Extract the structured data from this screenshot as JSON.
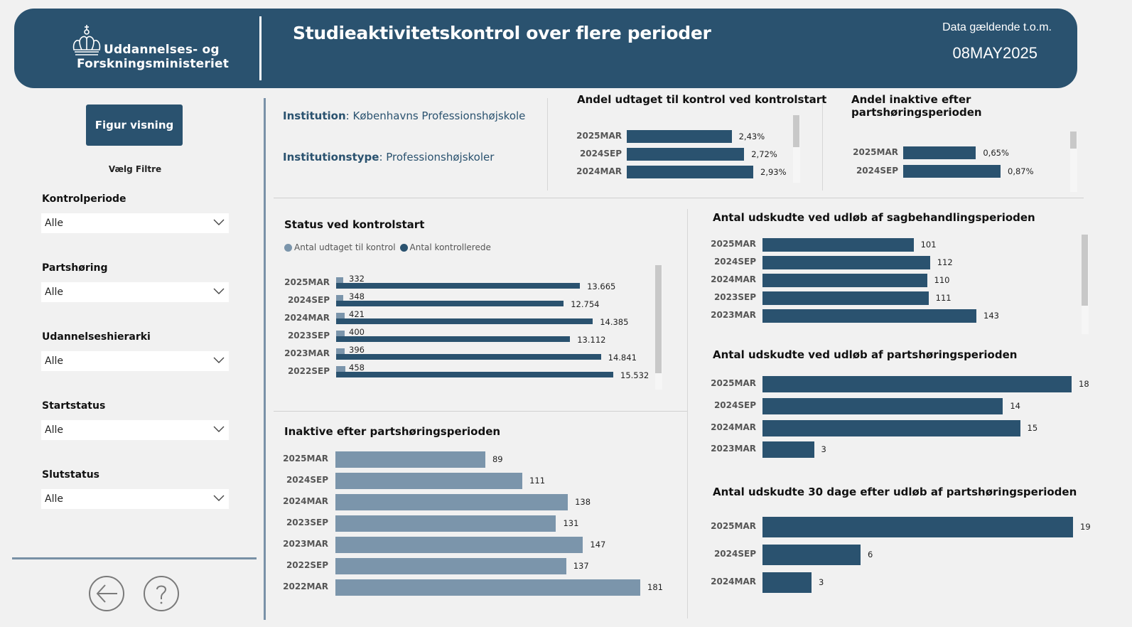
{
  "header": {
    "logo_line1": "Uddannelses- og",
    "logo_line2": "Forskningsministeriet",
    "title": "Studieaktivitetskontrol over flere perioder",
    "data_label": "Data gældende t.o.m.",
    "data_date": "08MAY2025"
  },
  "sidebar": {
    "figur_button": "Figur visning",
    "filters_heading": "Vælg Filtre",
    "filters": [
      {
        "label": "Kontrolperiode",
        "value": "Alle"
      },
      {
        "label": "Partshøring",
        "value": "Alle"
      },
      {
        "label": "Udannelseshierarki",
        "value": "Alle"
      },
      {
        "label": "Startstatus",
        "value": "Alle"
      },
      {
        "label": "Slutstatus",
        "value": "Alle"
      }
    ],
    "back_icon": "arrow-left-circle-icon",
    "help_icon": "question-circle-icon"
  },
  "info": {
    "institution_label": "Institution",
    "institution_value": ": Københavns Professionshøjskole",
    "type_label": "Institutionstype",
    "type_value": ": Professionshøjskoler"
  },
  "colors": {
    "primary": "#2a526f",
    "secondary": "#7b95ab",
    "background": "#f1f1f1"
  },
  "chart_data": [
    {
      "id": "andel-udtaget",
      "type": "bar",
      "title": "Andel udtaget til kontrol ved kontrolstart",
      "categories": [
        "2025MAR",
        "2024SEP",
        "2024MAR"
      ],
      "values": [
        2.43,
        2.72,
        2.93
      ],
      "labels": [
        "2,43%",
        "2,72%",
        "2,93%"
      ],
      "unit": "%"
    },
    {
      "id": "andel-inaktive",
      "type": "bar",
      "title": "Andel inaktive efter partshøringsperioden",
      "categories": [
        "2025MAR",
        "2024SEP"
      ],
      "values": [
        0.65,
        0.87
      ],
      "labels": [
        "0,65%",
        "0,87%"
      ],
      "unit": "%"
    },
    {
      "id": "status-kontrolstart",
      "type": "bar",
      "title": "Status ved kontrolstart",
      "legend": [
        "Antal udtaget til kontrol",
        "Antal kontrollerede"
      ],
      "legend_position": "top-left",
      "categories": [
        "2025MAR",
        "2024SEP",
        "2024MAR",
        "2023SEP",
        "2023MAR",
        "2022SEP"
      ],
      "series": [
        {
          "name": "Antal udtaget til kontrol",
          "values": [
            332,
            348,
            421,
            400,
            396,
            458
          ],
          "labels": [
            "332",
            "348",
            "421",
            "400",
            "396",
            "458"
          ]
        },
        {
          "name": "Antal kontrollerede",
          "values": [
            13665,
            12754,
            14385,
            13112,
            14841,
            15532
          ],
          "labels": [
            "13.665",
            "12.754",
            "14.385",
            "13.112",
            "14.841",
            "15.532"
          ]
        }
      ]
    },
    {
      "id": "inaktive-partshoring",
      "type": "bar",
      "title": "Inaktive efter partshøringsperioden",
      "categories": [
        "2025MAR",
        "2024SEP",
        "2024MAR",
        "2023SEP",
        "2023MAR",
        "2022SEP",
        "2022MAR"
      ],
      "values": [
        89,
        111,
        138,
        131,
        147,
        137,
        181
      ],
      "labels": [
        "89",
        "111",
        "138",
        "131",
        "147",
        "137",
        "181"
      ]
    },
    {
      "id": "udskudte-sagbehandling",
      "type": "bar",
      "title": "Antal udskudte ved udløb af sagbehandlingsperioden",
      "categories": [
        "2025MAR",
        "2024SEP",
        "2024MAR",
        "2023SEP",
        "2023MAR"
      ],
      "values": [
        101,
        112,
        110,
        111,
        143
      ],
      "labels": [
        "101",
        "112",
        "110",
        "111",
        "143"
      ]
    },
    {
      "id": "udskudte-partshoring",
      "type": "bar",
      "title": "Antal udskudte ved udløb af partshøringsperioden",
      "categories": [
        "2025MAR",
        "2024SEP",
        "2024MAR",
        "2023MAR"
      ],
      "values": [
        18,
        14,
        15,
        3
      ],
      "labels": [
        "18",
        "14",
        "15",
        "3"
      ]
    },
    {
      "id": "udskudte-30-dage",
      "type": "bar",
      "title": "Antal udskudte 30 dage efter udløb af partshøringsperioden",
      "categories": [
        "2025MAR",
        "2024SEP",
        "2024MAR"
      ],
      "values": [
        19,
        6,
        3
      ],
      "labels": [
        "19",
        "6",
        "3"
      ]
    }
  ]
}
